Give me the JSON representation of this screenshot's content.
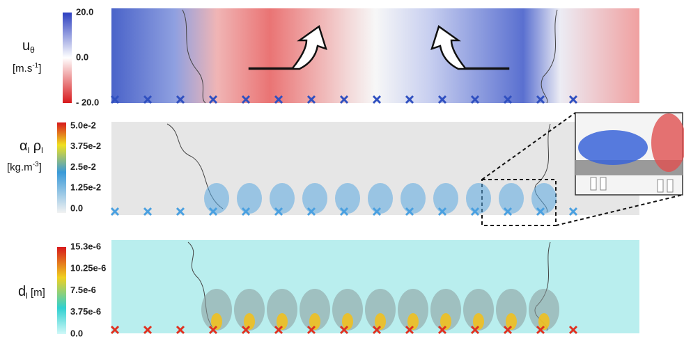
{
  "panels": [
    {
      "symbol": "u",
      "symbol_sub": "θ",
      "unit": "[m.s",
      "unit_sup": "-1",
      "unit_end": "]",
      "ticks": [
        "20.0",
        "0.0",
        "- 20.0"
      ]
    },
    {
      "symbol": "α",
      "symbol_sub": "l",
      "symbol2": " ρ",
      "symbol2_sub": "l",
      "unit": "[kg.m",
      "unit_sup": "-3",
      "unit_end": "]",
      "ticks": [
        "5.0e-2",
        "3.75e-2",
        "2.5e-2",
        "1.25e-2",
        "0.0"
      ]
    },
    {
      "symbol": "d",
      "symbol_sub": "l",
      "unit": " [m]",
      "ticks": [
        "15.3e-6",
        "10.25e-6",
        "7.5e-6",
        "3.75e-6",
        "0.0"
      ]
    }
  ]
}
